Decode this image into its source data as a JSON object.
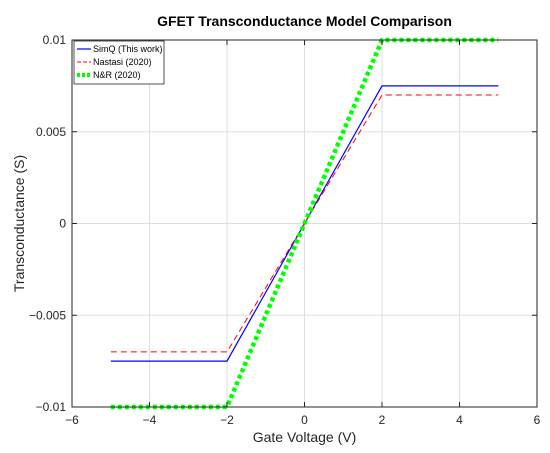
{
  "chart_data": {
    "type": "line",
    "title": "GFET Transconductance Model Comparison",
    "xlabel": "Gate Voltage (V)",
    "ylabel": "Transconductance (S)",
    "xlim": [
      -6,
      6
    ],
    "ylim": [
      -0.01,
      0.01
    ],
    "xticks": [
      -6,
      -4,
      -2,
      0,
      2,
      4,
      6
    ],
    "xtick_labels": [
      "−6",
      "−4",
      "−2",
      "0",
      "2",
      "4",
      "6"
    ],
    "yticks": [
      -0.01,
      -0.005,
      0,
      0.005,
      0.01
    ],
    "ytick_labels": [
      "−0.01",
      "−0.005",
      "0",
      "0.005",
      "0.01"
    ],
    "grid": true,
    "legend_position": "top-left",
    "series": [
      {
        "name": "SimQ (This work)",
        "color": "#0000ff",
        "style": "solid",
        "x": [
          -5,
          -2,
          2,
          5
        ],
        "y": [
          -0.0075,
          -0.0075,
          0.0075,
          0.0075
        ]
      },
      {
        "name": "Nastasi (2020)",
        "color": "#ff0000",
        "style": "dashed",
        "x": [
          -5,
          -2,
          2,
          5
        ],
        "y": [
          -0.007,
          -0.007,
          0.007,
          0.007
        ]
      },
      {
        "name": "N&R (2020)",
        "color": "#00ff00",
        "style": "dotted",
        "x": [
          -5,
          -2,
          2,
          5
        ],
        "y": [
          -0.01,
          -0.01,
          0.01,
          0.01
        ]
      }
    ]
  }
}
